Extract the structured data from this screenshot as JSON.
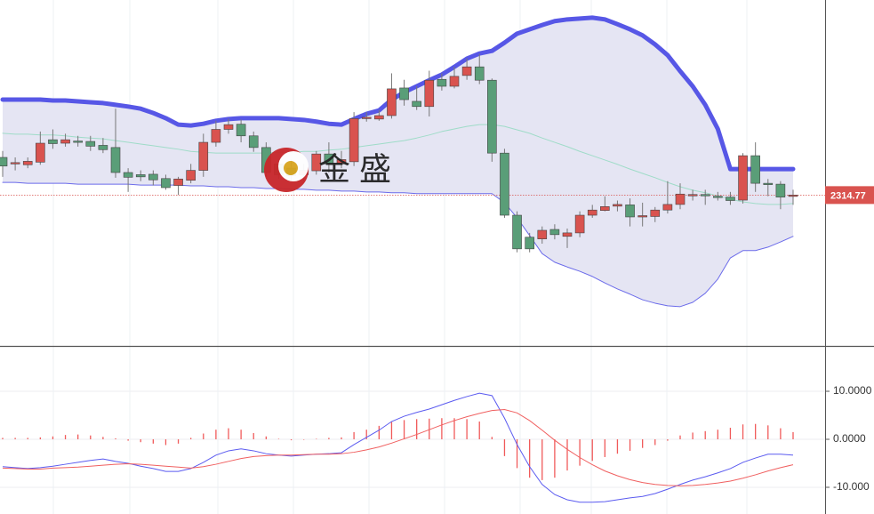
{
  "chart_data": [
    {
      "type": "candlestick",
      "up_color": "#d9534f",
      "down_color": "#5a9e78",
      "open": [
        2323.5,
        2322.0,
        2321.8,
        2322.4,
        2327.6,
        2326.8,
        2327.3,
        2327.2,
        2326.3,
        2325.8,
        2320.0,
        2319.5,
        2319.6,
        2318.6,
        2317.0,
        2318.2,
        2320.5,
        2327.0,
        2330.0,
        2331.2,
        2328.5,
        2325.8,
        2322.0,
        2321.0,
        2319.5,
        2320.4,
        2324.3,
        2322.0,
        2322.5,
        2332.6,
        2332.4,
        2333.2,
        2339.6,
        2336.5,
        2335.3,
        2341.6,
        2340.0,
        2342.5,
        2344.5,
        2341.4,
        2324.5,
        2310.1,
        2305.0,
        2304.6,
        2306.8,
        2305.2,
        2306.0,
        2310.1,
        2311.2,
        2312.2,
        2312.5,
        2309.8,
        2309.8,
        2311.3,
        2312.6,
        2314.8,
        2314.9,
        2314.5,
        2314.3,
        2313.6,
        2323.9,
        2317.5,
        2317.3,
        2314.5
      ],
      "high": [
        2325.0,
        2323.5,
        2323.5,
        2329.5,
        2330.0,
        2329.0,
        2328.5,
        2328.5,
        2328.0,
        2334.8,
        2321.0,
        2320.5,
        2320.5,
        2319.5,
        2319.0,
        2322.0,
        2329.0,
        2332.0,
        2332.5,
        2332.3,
        2329.5,
        2327.0,
        2323.0,
        2323.0,
        2322.0,
        2325.0,
        2327.0,
        2325.0,
        2334.0,
        2334.0,
        2334.5,
        2343.0,
        2341.5,
        2340.0,
        2343.6,
        2343.0,
        2344.5,
        2346.5,
        2347.5,
        2341.8,
        2325.5,
        2311.0,
        2306.0,
        2307.5,
        2308.0,
        2307.0,
        2311.0,
        2312.5,
        2314.5,
        2313.5,
        2314.0,
        2313.0,
        2312.0,
        2318.0,
        2317.5,
        2316.0,
        2316.0,
        2315.5,
        2315.5,
        2324.5,
        2327.0,
        2318.5,
        2318.0,
        2316.0
      ],
      "low": [
        2319.0,
        2320.5,
        2321.0,
        2321.8,
        2325.5,
        2326.0,
        2326.0,
        2325.0,
        2324.5,
        2318.8,
        2315.5,
        2318.0,
        2317.0,
        2316.0,
        2314.8,
        2317.5,
        2319.0,
        2326.0,
        2329.0,
        2327.0,
        2324.8,
        2319.0,
        2318.5,
        2318.0,
        2318.0,
        2319.5,
        2320.0,
        2321.0,
        2321.5,
        2331.8,
        2332.0,
        2332.5,
        2335.5,
        2334.5,
        2333.0,
        2339.0,
        2339.5,
        2341.5,
        2340.5,
        2322.5,
        2309.5,
        2301.5,
        2301.5,
        2303.5,
        2304.5,
        2302.5,
        2305.0,
        2309.5,
        2311.0,
        2311.0,
        2307.5,
        2307.5,
        2308.5,
        2310.5,
        2311.5,
        2313.5,
        2312.5,
        2313.5,
        2312.5,
        2312.8,
        2315.5,
        2314.5,
        2311.5,
        2312.5
      ],
      "close": [
        2321.5,
        2322.3,
        2322.6,
        2326.8,
        2326.7,
        2327.6,
        2327.1,
        2326.1,
        2325.3,
        2320.0,
        2318.9,
        2319.0,
        2318.3,
        2316.5,
        2318.5,
        2320.5,
        2327.0,
        2330.0,
        2331.1,
        2328.5,
        2325.8,
        2320.0,
        2319.5,
        2319.3,
        2320.5,
        2324.3,
        2322.0,
        2323.0,
        2332.5,
        2332.8,
        2333.2,
        2339.4,
        2336.9,
        2335.3,
        2341.4,
        2340.0,
        2342.3,
        2344.5,
        2341.4,
        2324.5,
        2310.1,
        2302.3,
        2302.3,
        2306.6,
        2305.6,
        2306.0,
        2310.1,
        2311.3,
        2312.1,
        2312.6,
        2309.7,
        2310.0,
        2311.3,
        2312.6,
        2315.0,
        2314.9,
        2314.6,
        2314.3,
        2313.5,
        2323.9,
        2317.5,
        2317.3,
        2314.3,
        2314.77
      ],
      "overlays": [
        {
          "color": "#9fdcc8",
          "width": 1,
          "values": [
            2329.1,
            2328.9,
            2328.9,
            2328.7,
            2328.7,
            2328.5,
            2328.2,
            2328.0,
            2327.8,
            2327.4,
            2327.0,
            2326.6,
            2326.2,
            2325.8,
            2325.4,
            2324.9,
            2324.7,
            2324.5,
            2324.5,
            2324.5,
            2324.5,
            2324.5,
            2324.7,
            2324.7,
            2324.9,
            2324.9,
            2325.2,
            2325.4,
            2325.8,
            2326.2,
            2326.6,
            2327.0,
            2327.4,
            2328.0,
            2328.7,
            2329.5,
            2330.1,
            2330.7,
            2331.1,
            2331.1,
            2330.7,
            2329.9,
            2329.1,
            2328.0,
            2327.0,
            2326.0,
            2324.9,
            2323.9,
            2322.9,
            2321.9,
            2320.8,
            2319.8,
            2318.8,
            2317.7,
            2316.7,
            2315.9,
            2315.3,
            2314.6,
            2313.8,
            2313.2,
            2312.8,
            2312.6,
            2312.6,
            2312.8
          ]
        },
        {
          "color": "#6b6bea",
          "width": 1,
          "values": [
            2317.7,
            2317.7,
            2317.5,
            2317.5,
            2317.5,
            2317.5,
            2317.3,
            2317.3,
            2317.3,
            2317.3,
            2317.3,
            2317.1,
            2317.1,
            2317.1,
            2317.1,
            2316.9,
            2316.9,
            2316.7,
            2316.7,
            2316.5,
            2316.5,
            2316.3,
            2316.3,
            2316.1,
            2316.1,
            2315.9,
            2315.9,
            2315.7,
            2315.7,
            2315.5,
            2315.5,
            2315.3,
            2315.3,
            2315.1,
            2315.1,
            2315.1,
            2315.1,
            2315.1,
            2315.1,
            2315.1,
            2313.0,
            2309.5,
            2305.4,
            2301.2,
            2299.2,
            2298.1,
            2297.1,
            2295.9,
            2294.4,
            2293.0,
            2291.8,
            2290.5,
            2289.7,
            2289.1,
            2288.9,
            2289.9,
            2292.0,
            2295.3,
            2300.2,
            2301.9,
            2301.9,
            2302.7,
            2303.9,
            2305.2
          ]
        },
        {
          "color": "#5757e6",
          "width": 5,
          "values": [
            2336.9,
            2336.9,
            2336.9,
            2336.9,
            2336.7,
            2336.7,
            2336.5,
            2336.3,
            2336.1,
            2335.7,
            2335.3,
            2334.8,
            2333.8,
            2332.6,
            2331.1,
            2330.9,
            2331.3,
            2332.0,
            2332.4,
            2332.6,
            2332.6,
            2332.6,
            2332.6,
            2332.4,
            2332.2,
            2331.8,
            2331.3,
            2331.1,
            2332.4,
            2333.6,
            2334.4,
            2336.9,
            2338.6,
            2340.0,
            2341.4,
            2342.7,
            2344.5,
            2346.4,
            2347.6,
            2348.2,
            2350.1,
            2352.2,
            2353.2,
            2354.2,
            2355.1,
            2355.5,
            2355.7,
            2355.9,
            2355.5,
            2354.4,
            2353.2,
            2351.8,
            2349.7,
            2347.2,
            2343.5,
            2340.0,
            2335.7,
            2330.1,
            2320.8,
            2320.8,
            2320.8,
            2320.8,
            2320.8,
            2320.8
          ]
        }
      ],
      "band_fill": "#e5e5f3",
      "last_price": 2314.77,
      "last_price_color": "#d9534f",
      "ylim": [
        2280,
        2360
      ],
      "watermark": "金 盛"
    },
    {
      "type": "macd",
      "histogram_color": "#f05a5a",
      "histogram": [
        0.3,
        0.3,
        0.3,
        0.4,
        0.6,
        0.9,
        1.0,
        0.8,
        0.5,
        0.2,
        -0.3,
        -0.6,
        -0.9,
        -1.2,
        -0.9,
        0.3,
        1.2,
        2.0,
        2.3,
        2.0,
        1.3,
        0.6,
        0.1,
        -0.2,
        -0.1,
        0.1,
        0.3,
        0.4,
        1.5,
        2.0,
        2.8,
        3.6,
        4.0,
        4.2,
        4.3,
        4.4,
        4.4,
        4.2,
        3.7,
        0.5,
        -3.5,
        -6.0,
        -8.0,
        -8.5,
        -8.0,
        -6.5,
        -5.5,
        -4.5,
        -3.7,
        -3.0,
        -2.4,
        -1.8,
        -1.2,
        -0.3,
        0.8,
        1.4,
        1.7,
        2.0,
        2.4,
        3.1,
        3.2,
        2.9,
        2.3,
        1.5
      ],
      "series": [
        {
          "color": "#5b5bf0",
          "values": [
            -5.7,
            -5.9,
            -6.1,
            -5.9,
            -5.6,
            -5.2,
            -4.8,
            -4.4,
            -4.1,
            -4.6,
            -5.0,
            -5.6,
            -6.1,
            -6.7,
            -6.7,
            -6.1,
            -4.8,
            -3.3,
            -2.4,
            -2.0,
            -2.4,
            -3.0,
            -3.3,
            -3.5,
            -3.3,
            -3.1,
            -3.0,
            -2.8,
            -1.1,
            0.4,
            1.9,
            3.7,
            4.8,
            5.6,
            6.3,
            7.2,
            8.1,
            8.9,
            9.6,
            9.1,
            4.4,
            -1.1,
            -5.7,
            -9.4,
            -11.5,
            -12.6,
            -13.1,
            -13.1,
            -13.0,
            -12.6,
            -12.2,
            -11.9,
            -11.3,
            -10.4,
            -9.4,
            -8.5,
            -7.8,
            -7.0,
            -6.1,
            -4.8,
            -3.9,
            -3.1,
            -3.1,
            -3.3
          ]
        },
        {
          "color": "#f06060",
          "values": [
            -6.0,
            -6.1,
            -6.2,
            -6.2,
            -6.0,
            -5.9,
            -5.8,
            -5.6,
            -5.4,
            -5.2,
            -5.1,
            -5.2,
            -5.4,
            -5.6,
            -5.8,
            -6.0,
            -5.7,
            -5.2,
            -4.6,
            -4.0,
            -3.6,
            -3.4,
            -3.3,
            -3.3,
            -3.2,
            -3.1,
            -3.1,
            -3.0,
            -2.7,
            -2.2,
            -1.6,
            -0.8,
            0.1,
            1.0,
            2.0,
            3.0,
            3.9,
            4.7,
            5.4,
            6.0,
            6.2,
            5.5,
            3.9,
            1.9,
            -0.2,
            -2.1,
            -3.8,
            -5.3,
            -6.6,
            -7.6,
            -8.4,
            -9.0,
            -9.4,
            -9.6,
            -9.7,
            -9.6,
            -9.4,
            -9.1,
            -8.7,
            -8.1,
            -7.4,
            -6.6,
            -5.9,
            -5.3
          ]
        }
      ],
      "ylim": [
        -15.56,
        19.26
      ],
      "yticks": [
        {
          "value": 10,
          "label": "10.0000"
        },
        {
          "value": 0,
          "label": "0.0000"
        },
        {
          "value": -10,
          "label": "-10.000"
        }
      ],
      "grid": true
    }
  ]
}
